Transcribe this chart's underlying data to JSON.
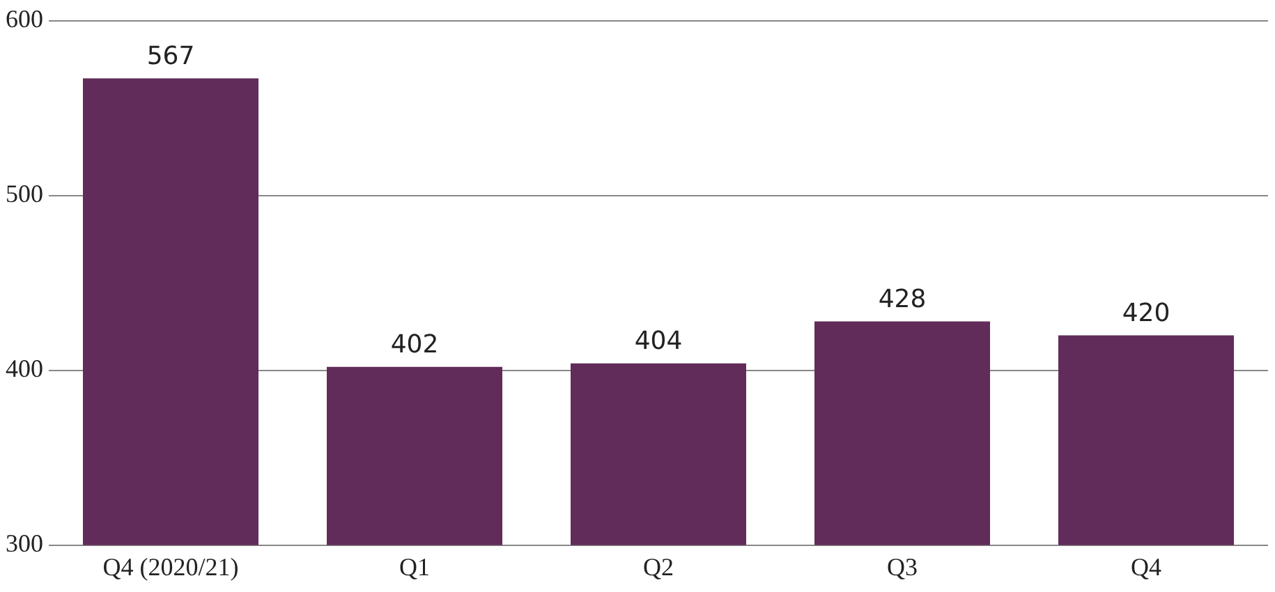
{
  "chart_data": {
    "type": "bar",
    "categories": [
      "Q4 (2020/21)",
      "Q1",
      "Q2",
      "Q3",
      "Q4"
    ],
    "values": [
      567,
      402,
      404,
      428,
      420
    ],
    "color": "#612c59",
    "ylim": [
      300,
      600
    ],
    "yticks": [
      300,
      400,
      500,
      600
    ],
    "grid": "y",
    "data_labels": true
  }
}
